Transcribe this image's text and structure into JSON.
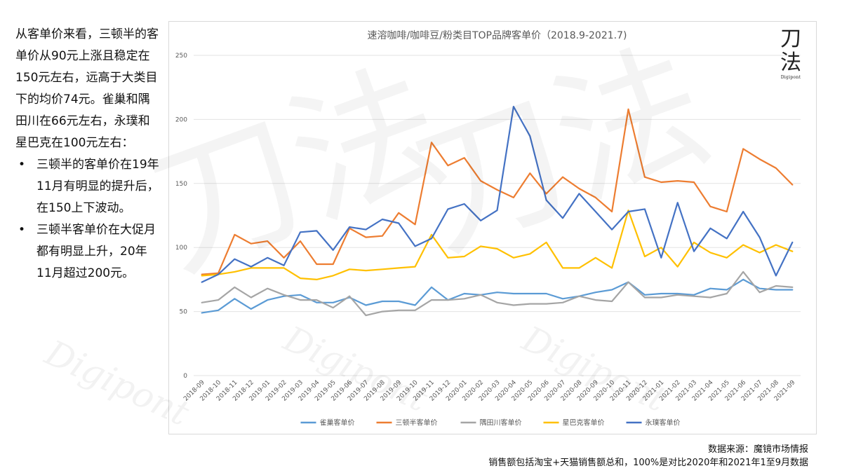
{
  "commentary": {
    "intro": "从客单价来看，三顿半的客单价从90元上涨且稳定在150元左右，远高于大类目下的均价74元。雀巢和隅田川在66元左右，永璞和星巴克在100元左右：",
    "bullets": [
      "三顿半的客单价在19年11月有明显的提升后，在150上下波动。",
      "三顿半客单价在大促月都有明显上升，20年11月超过200元。"
    ]
  },
  "logo": {
    "line1": "刀",
    "line2": "法",
    "brand": "Digipont"
  },
  "watermark": {
    "chars": "刀法",
    "brand": "Digipont"
  },
  "footnote": {
    "source": "数据来源：魔镜市场情报",
    "note": "销售额包括淘宝+天猫销售额总和，100%是对比2020年和2021年1至9月数据"
  },
  "colors": {
    "雀巢": "#5b9bd5",
    "三顿半": "#ed7d31",
    "隅田川": "#a5a5a5",
    "星巴克": "#ffc000",
    "永璞": "#4472c4"
  },
  "chart_data": {
    "type": "line",
    "title": "速溶咖啡/咖啡豆/粉类目TOP品牌客单价（2018.9-2021.7)",
    "xlabel": "",
    "ylabel": "",
    "ylim": [
      0,
      250
    ],
    "yticks": [
      0,
      50,
      100,
      150,
      200,
      250
    ],
    "grid": true,
    "legend_position": "bottom",
    "categories": [
      "2018-09",
      "2018-10",
      "2018-11",
      "2018-12",
      "2019-01",
      "2019-02",
      "2019-03",
      "2019-04",
      "2019-05",
      "2019-06",
      "2019-07",
      "2019-08",
      "2019-09",
      "2019-10",
      "2019-11",
      "2019-12",
      "2020-01",
      "2020-02",
      "2020-03",
      "2020-04",
      "2020-05",
      "2020-06",
      "2020-07",
      "2020-08",
      "2020-09",
      "2020-10",
      "2020-11",
      "2020-12",
      "2021-01",
      "2021-02",
      "2021-03",
      "2021-04",
      "2021-05",
      "2021-06",
      "2021-07",
      "2021-08",
      "2021-09"
    ],
    "series": [
      {
        "name": "雀巢客单价",
        "color": "#5b9bd5",
        "values": [
          49,
          51,
          60,
          52,
          59,
          62,
          63,
          57,
          57,
          61,
          55,
          58,
          58,
          55,
          69,
          59,
          64,
          63,
          65,
          64,
          64,
          64,
          60,
          62,
          65,
          67,
          73,
          63,
          64,
          64,
          63,
          68,
          67,
          75,
          68,
          67,
          67
        ]
      },
      {
        "name": "三顿半客单价",
        "color": "#ed7d31",
        "values": [
          79,
          80,
          110,
          103,
          105,
          92,
          105,
          87,
          87,
          115,
          108,
          109,
          127,
          118,
          182,
          164,
          170,
          152,
          145,
          139,
          158,
          142,
          155,
          146,
          139,
          128,
          208,
          155,
          151,
          152,
          151,
          132,
          128,
          177,
          169,
          162,
          149
        ]
      },
      {
        "name": "隅田川客单价",
        "color": "#a5a5a5",
        "values": [
          57,
          59,
          69,
          61,
          68,
          63,
          59,
          59,
          53,
          62,
          47,
          50,
          51,
          51,
          59,
          59,
          60,
          63,
          57,
          55,
          56,
          56,
          57,
          62,
          59,
          58,
          73,
          61,
          61,
          63,
          62,
          61,
          64,
          81,
          65,
          70,
          69
        ]
      },
      {
        "name": "星巴克客单价",
        "color": "#ffc000",
        "values": [
          78,
          79,
          81,
          84,
          84,
          84,
          76,
          75,
          78,
          83,
          82,
          83,
          84,
          85,
          110,
          92,
          93,
          101,
          99,
          92,
          95,
          104,
          84,
          84,
          92,
          84,
          129,
          93,
          100,
          85,
          104,
          96,
          92,
          102,
          96,
          102,
          97
        ]
      },
      {
        "name": "永璞客单价",
        "color": "#4472c4",
        "values": [
          73,
          79,
          91,
          85,
          92,
          86,
          112,
          113,
          98,
          116,
          114,
          122,
          119,
          101,
          107,
          130,
          134,
          121,
          129,
          210,
          187,
          137,
          123,
          142,
          128,
          114,
          128,
          130,
          92,
          135,
          97,
          115,
          107,
          128,
          108,
          78,
          104
        ]
      }
    ]
  }
}
